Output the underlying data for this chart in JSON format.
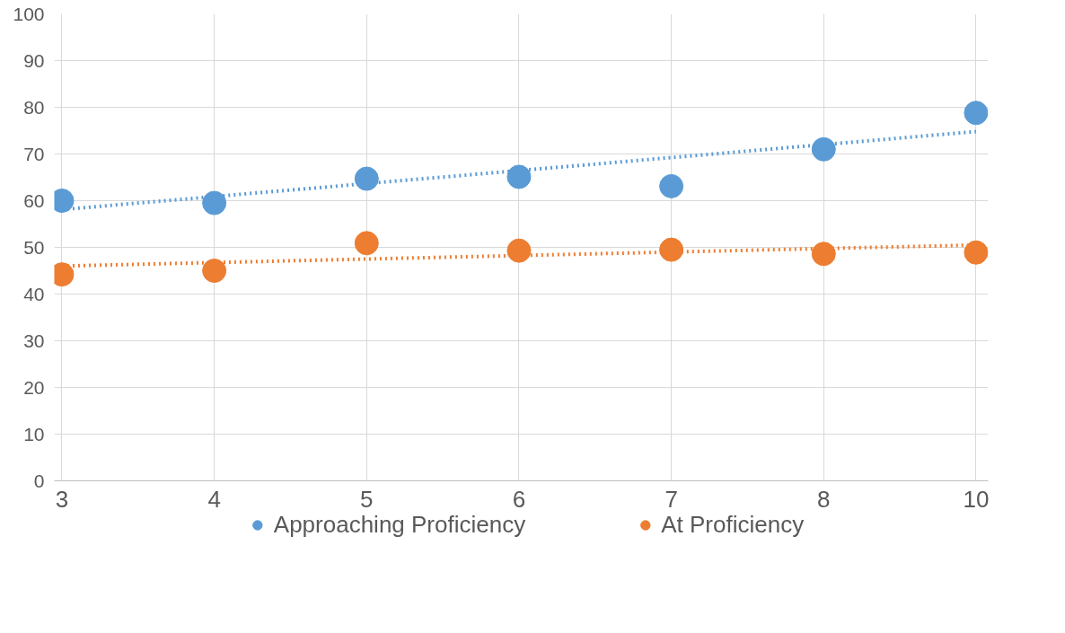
{
  "chart_data": {
    "type": "scatter",
    "categories": [
      "3",
      "4",
      "5",
      "6",
      "7",
      "8",
      "10"
    ],
    "ylim": [
      0,
      100
    ],
    "yticks": [
      0,
      10,
      20,
      30,
      40,
      50,
      60,
      70,
      80,
      90,
      100
    ],
    "grid": true,
    "legend": "bottom",
    "marker": "circle",
    "series": [
      {
        "name": "Approaching Proficiency",
        "color": "#5b9bd5",
        "values": [
          60,
          59.5,
          64.7,
          65.1,
          63.1,
          71,
          78.8
        ]
      },
      {
        "name": "At Proficiency",
        "color": "#ed7d31",
        "values": [
          44.2,
          45,
          50.9,
          49.3,
          49.5,
          48.6,
          48.9
        ]
      },
      {
        "type": "line",
        "line_style": "dotted",
        "marker": "none",
        "color": "#5b9bd5",
        "x": [
          "3",
          "10"
        ],
        "values": [
          58.1,
          74.8
        ]
      },
      {
        "type": "line",
        "line_style": "dotted",
        "marker": "none",
        "color": "#ed7d31",
        "x": [
          "3",
          "10"
        ],
        "values": [
          46,
          50.5
        ]
      }
    ]
  }
}
